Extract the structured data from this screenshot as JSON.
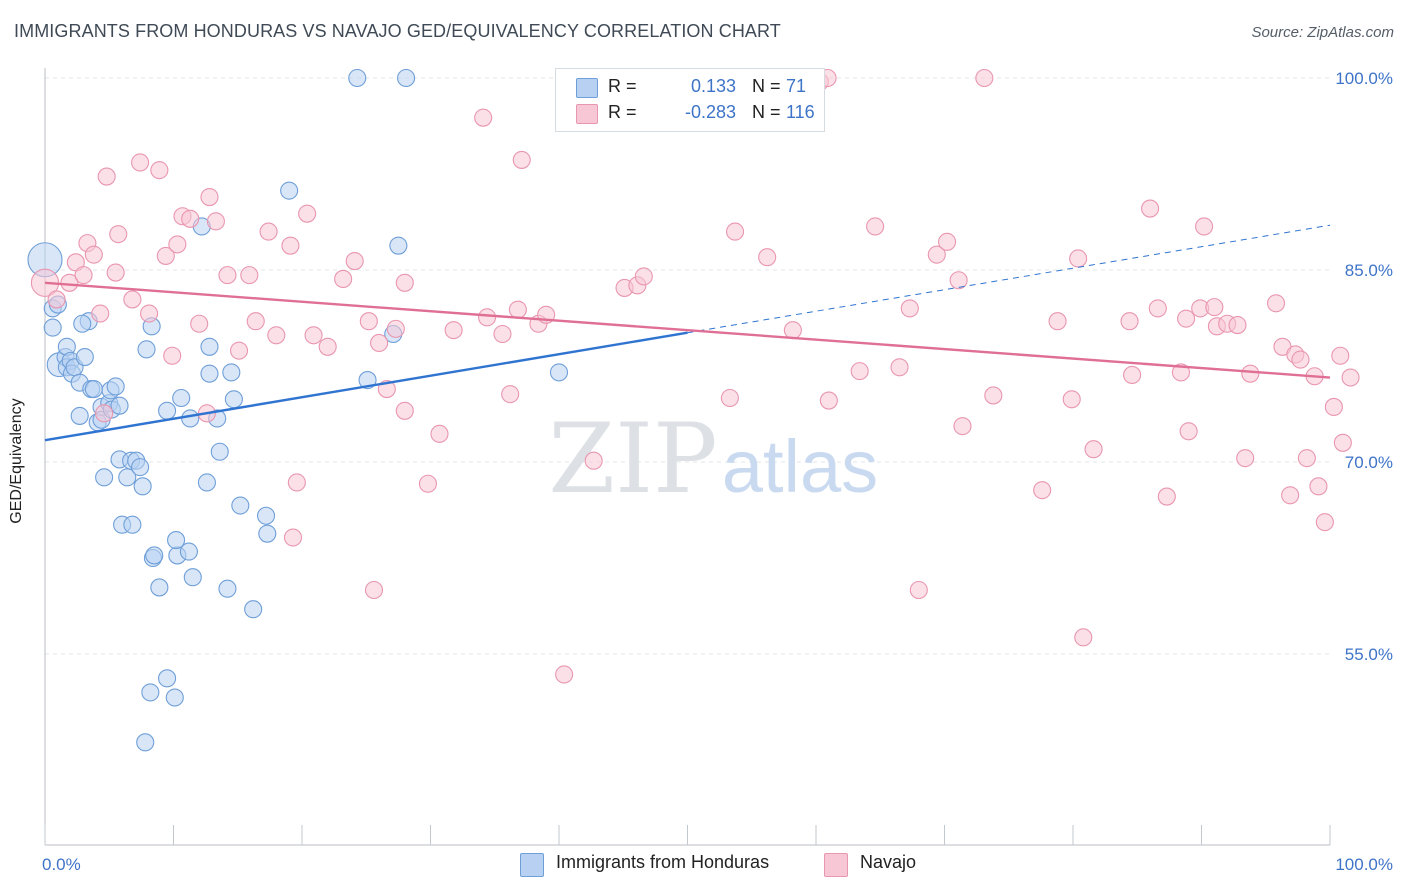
{
  "header": {
    "title": "IMMIGRANTS FROM HONDURAS VS NAVAJO GED/EQUIVALENCY CORRELATION CHART",
    "source": "Source: ZipAtlas.com"
  },
  "watermark": {
    "zip": "ZIP",
    "atlas": "atlas"
  },
  "colors": {
    "blue_fill": "#b8d1f3",
    "blue_stroke": "#6f9fd8",
    "blue_line": "#2f74d0",
    "pink_fill": "#f8c7d6",
    "pink_stroke": "#e996b0",
    "pink_line": "#e06f95",
    "tick_label": "#3e74c8",
    "grid": "#e2e6ea"
  },
  "legend": {
    "rows": [
      {
        "r_label": "R =",
        "r_value": "0.133",
        "n_label": "N =",
        "n_value": "71",
        "color": "#b8d1f3",
        "stroke": "#6f9fd8"
      },
      {
        "r_label": "R =",
        "r_value": "-0.283",
        "n_label": "N =",
        "n_value": "116",
        "color": "#f8c7d6",
        "stroke": "#e996b0"
      }
    ]
  },
  "bottom_legend": {
    "items": [
      {
        "label": "Immigrants from Honduras",
        "color": "#b8d1f3",
        "stroke": "#6f9fd8"
      },
      {
        "label": "Navajo",
        "color": "#f8c7d6",
        "stroke": "#e996b0"
      }
    ]
  },
  "chart_data": {
    "type": "scatter",
    "title": "IMMIGRANTS FROM HONDURAS VS NAVAJO GED/EQUIVALENCY CORRELATION CHART",
    "xlabel": "",
    "ylabel": "GED/Equivalency",
    "xlim": [
      0,
      100
    ],
    "ylim": [
      40,
      102
    ],
    "x_tick_labels": [
      {
        "value": 0,
        "label": "0.0%"
      },
      {
        "value": 100,
        "label": "100.0%"
      }
    ],
    "y_ticks": [
      {
        "value": 55,
        "label": "55.0%"
      },
      {
        "value": 70,
        "label": "70.0%"
      },
      {
        "value": 85,
        "label": "85.0%"
      },
      {
        "value": 100,
        "label": "100.0%"
      }
    ],
    "series": [
      {
        "name": "Immigrants from Honduras",
        "trend": {
          "x0": 0,
          "y0": 71.7,
          "x1": 50,
          "y1": 80.1,
          "dashed_to_x": 100,
          "dashed_to_y": 88.5
        },
        "points": [
          [
            0,
            85.8,
            2
          ],
          [
            0.6,
            82.0,
            1
          ],
          [
            0.6,
            80.5,
            1
          ],
          [
            1.0,
            82.3,
            1
          ],
          [
            1.1,
            77.6,
            1.4
          ],
          [
            1.6,
            78.2,
            1
          ],
          [
            1.7,
            77.4,
            1
          ],
          [
            1.7,
            79.0,
            1
          ],
          [
            2.0,
            77.9,
            1
          ],
          [
            2.1,
            76.9,
            1
          ],
          [
            2.3,
            77.4,
            1
          ],
          [
            2.7,
            73.6,
            1
          ],
          [
            2.7,
            76.2,
            1
          ],
          [
            3.1,
            78.2,
            1
          ],
          [
            3.4,
            81.0,
            1
          ],
          [
            3.6,
            75.7,
            1
          ],
          [
            3.8,
            75.7,
            1
          ],
          [
            4.1,
            73.1,
            1
          ],
          [
            4.4,
            74.3,
            1
          ],
          [
            4.4,
            73.3,
            1
          ],
          [
            4.6,
            68.8,
            1
          ],
          [
            5.0,
            74.6,
            1
          ],
          [
            5.1,
            75.6,
            1
          ],
          [
            5.2,
            74.1,
            1
          ],
          [
            5.5,
            75.9,
            1
          ],
          [
            5.8,
            74.4,
            1
          ],
          [
            5.8,
            70.2,
            1
          ],
          [
            6.0,
            65.1,
            1
          ],
          [
            6.4,
            68.8,
            1
          ],
          [
            6.7,
            70.1,
            1
          ],
          [
            6.8,
            65.1,
            1
          ],
          [
            7.1,
            70.1,
            1
          ],
          [
            7.4,
            69.6,
            1
          ],
          [
            7.6,
            68.1,
            1
          ],
          [
            7.9,
            78.8,
            1
          ],
          [
            8.3,
            80.6,
            1
          ],
          [
            8.4,
            62.5,
            1
          ],
          [
            8.5,
            62.7,
            1
          ],
          [
            8.9,
            60.2,
            1
          ],
          [
            9.5,
            74.0,
            1
          ],
          [
            10.3,
            62.7,
            1
          ],
          [
            10.6,
            75.0,
            1
          ],
          [
            11.2,
            63.0,
            1
          ],
          [
            11.3,
            73.4,
            1
          ],
          [
            11.5,
            61.0,
            1
          ],
          [
            12.2,
            88.4,
            1
          ],
          [
            12.8,
            79.0,
            1
          ],
          [
            12.8,
            76.9,
            1
          ],
          [
            13.4,
            73.4,
            1
          ],
          [
            13.6,
            70.8,
            1
          ],
          [
            14.5,
            77.0,
            1
          ],
          [
            14.7,
            74.9,
            1
          ],
          [
            15.2,
            66.6,
            1
          ],
          [
            16.2,
            58.5,
            1
          ],
          [
            17.2,
            65.8,
            1
          ],
          [
            17.3,
            64.4,
            1
          ],
          [
            19.0,
            91.2,
            1
          ],
          [
            24.3,
            100.0,
            1
          ],
          [
            25.1,
            76.4,
            1
          ],
          [
            27.1,
            80.0,
            1
          ],
          [
            27.5,
            86.9,
            1
          ],
          [
            28.1,
            100.0,
            1
          ],
          [
            40.0,
            77.0,
            1
          ],
          [
            12.6,
            68.4,
            1
          ],
          [
            14.2,
            60.1,
            1
          ],
          [
            10.2,
            63.9,
            1
          ],
          [
            8.2,
            52.0,
            1
          ],
          [
            9.5,
            53.1,
            1
          ],
          [
            10.1,
            51.6,
            1
          ],
          [
            7.8,
            48.1,
            1
          ],
          [
            2.9,
            80.8,
            1
          ]
        ]
      },
      {
        "name": "Navajo",
        "trend": {
          "x0": 0,
          "y0": 84.0,
          "x1": 100,
          "y1": 76.6
        },
        "points": [
          [
            0,
            84.0,
            1.6
          ],
          [
            0.9,
            82.7,
            1
          ],
          [
            1.9,
            84.0,
            1
          ],
          [
            2.4,
            85.6,
            1
          ],
          [
            3.0,
            84.6,
            1
          ],
          [
            3.3,
            87.1,
            1
          ],
          [
            3.8,
            86.2,
            1
          ],
          [
            4.3,
            81.6,
            1
          ],
          [
            4.6,
            73.8,
            1
          ],
          [
            4.8,
            92.3,
            1
          ],
          [
            5.5,
            84.8,
            1
          ],
          [
            5.7,
            87.8,
            1
          ],
          [
            6.8,
            82.7,
            1
          ],
          [
            7.4,
            93.4,
            1
          ],
          [
            8.1,
            81.6,
            1
          ],
          [
            8.9,
            92.8,
            1
          ],
          [
            9.4,
            86.1,
            1
          ],
          [
            9.9,
            78.3,
            1
          ],
          [
            10.3,
            87.0,
            1
          ],
          [
            10.7,
            89.2,
            1
          ],
          [
            11.3,
            89.0,
            1
          ],
          [
            12.0,
            80.8,
            1
          ],
          [
            12.6,
            73.8,
            1
          ],
          [
            12.8,
            90.7,
            1
          ],
          [
            13.3,
            88.8,
            1
          ],
          [
            14.2,
            84.6,
            1
          ],
          [
            15.1,
            78.7,
            1
          ],
          [
            15.9,
            84.6,
            1
          ],
          [
            16.4,
            81.0,
            1
          ],
          [
            17.4,
            88.0,
            1
          ],
          [
            18.0,
            79.9,
            1
          ],
          [
            19.1,
            86.9,
            1
          ],
          [
            19.3,
            64.1,
            1
          ],
          [
            19.6,
            68.4,
            1
          ],
          [
            20.4,
            89.4,
            1
          ],
          [
            20.9,
            79.9,
            1
          ],
          [
            22.0,
            79.0,
            1
          ],
          [
            23.2,
            84.3,
            1
          ],
          [
            24.1,
            85.7,
            1
          ],
          [
            25.2,
            81.0,
            1
          ],
          [
            25.6,
            60.0,
            1
          ],
          [
            26.0,
            79.3,
            1
          ],
          [
            26.6,
            75.7,
            1
          ],
          [
            27.3,
            80.4,
            1
          ],
          [
            28.0,
            74.0,
            1
          ],
          [
            28.0,
            84.0,
            1
          ],
          [
            29.8,
            68.3,
            1
          ],
          [
            30.7,
            72.2,
            1
          ],
          [
            31.8,
            80.3,
            1
          ],
          [
            34.1,
            96.9,
            1
          ],
          [
            34.4,
            81.3,
            1
          ],
          [
            35.6,
            80.0,
            1
          ],
          [
            36.2,
            75.3,
            1
          ],
          [
            36.8,
            81.9,
            1
          ],
          [
            37.1,
            93.6,
            1
          ],
          [
            38.4,
            80.8,
            1
          ],
          [
            39.0,
            81.5,
            1
          ],
          [
            40.4,
            53.4,
            1
          ],
          [
            42.7,
            70.1,
            1
          ],
          [
            45.1,
            83.6,
            1
          ],
          [
            46.1,
            83.8,
            1
          ],
          [
            46.6,
            84.5,
            1
          ],
          [
            53.3,
            75.0,
            1
          ],
          [
            53.7,
            88.0,
            1
          ],
          [
            56.2,
            86.0,
            1
          ],
          [
            58.2,
            80.3,
            1
          ],
          [
            60.3,
            99.7,
            1
          ],
          [
            60.9,
            100.0,
            1
          ],
          [
            61.0,
            74.8,
            1
          ],
          [
            63.4,
            77.1,
            1
          ],
          [
            64.6,
            88.4,
            1
          ],
          [
            66.5,
            77.4,
            1
          ],
          [
            67.3,
            82.0,
            1
          ],
          [
            68.0,
            60.0,
            1
          ],
          [
            69.4,
            86.2,
            1
          ],
          [
            70.2,
            87.2,
            1
          ],
          [
            71.1,
            84.2,
            1
          ],
          [
            71.4,
            72.8,
            1
          ],
          [
            73.1,
            100.0,
            1
          ],
          [
            73.8,
            75.2,
            1
          ],
          [
            77.6,
            67.8,
            1
          ],
          [
            78.8,
            81.0,
            1
          ],
          [
            79.9,
            74.9,
            1
          ],
          [
            80.4,
            85.9,
            1
          ],
          [
            80.8,
            56.3,
            1
          ],
          [
            81.6,
            71.0,
            1
          ],
          [
            84.4,
            81.0,
            1
          ],
          [
            84.6,
            76.8,
            1
          ],
          [
            86.0,
            89.8,
            1
          ],
          [
            86.6,
            82.0,
            1
          ],
          [
            87.3,
            67.3,
            1
          ],
          [
            88.4,
            77.0,
            1
          ],
          [
            88.8,
            81.2,
            1
          ],
          [
            89.0,
            72.4,
            1
          ],
          [
            89.9,
            82.0,
            1
          ],
          [
            90.2,
            88.4,
            1
          ],
          [
            91.0,
            82.1,
            1
          ],
          [
            91.2,
            80.6,
            1
          ],
          [
            92.0,
            80.8,
            1
          ],
          [
            92.8,
            80.7,
            1
          ],
          [
            93.4,
            70.3,
            1
          ],
          [
            93.8,
            76.9,
            1
          ],
          [
            95.8,
            82.4,
            1
          ],
          [
            96.3,
            79.0,
            1
          ],
          [
            96.9,
            67.4,
            1
          ],
          [
            97.3,
            78.4,
            1
          ],
          [
            97.7,
            78.0,
            1
          ],
          [
            98.2,
            70.3,
            1
          ],
          [
            98.8,
            76.7,
            1
          ],
          [
            99.1,
            68.1,
            1
          ],
          [
            99.6,
            65.3,
            1
          ],
          [
            100.3,
            74.3,
            1
          ],
          [
            100.8,
            78.3,
            1
          ],
          [
            101.0,
            71.5,
            1
          ],
          [
            101.6,
            76.6,
            1
          ]
        ]
      }
    ]
  }
}
